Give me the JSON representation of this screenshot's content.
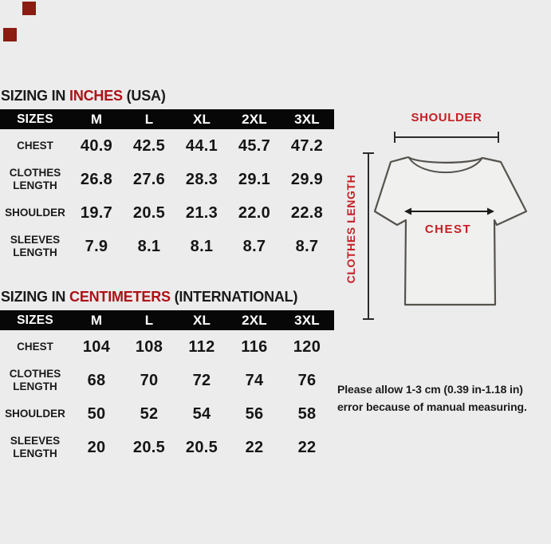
{
  "colors": {
    "background": "#ececec",
    "band": "#070707",
    "band_text": "#ffffff",
    "table_red": "#ae1116",
    "diagram_red": "#c52025",
    "text": "#1a1a1a",
    "square": "#8a1c12",
    "shirt_outline": "#56534d"
  },
  "tables": [
    {
      "title_prefix": "SIZING IN ",
      "title_unit": "INCHES",
      "title_suffix": " (USA)",
      "header": [
        "SIZES",
        "M",
        "L",
        "XL",
        "2XL",
        "3XL"
      ],
      "rows": [
        {
          "label": "CHEST",
          "values": [
            "40.9",
            "42.5",
            "44.1",
            "45.7",
            "47.2"
          ]
        },
        {
          "label": "CLOTHES LENGTH",
          "values": [
            "26.8",
            "27.6",
            "28.3",
            "29.1",
            "29.9"
          ]
        },
        {
          "label": "SHOULDER",
          "values": [
            "19.7",
            "20.5",
            "21.3",
            "22.0",
            "22.8"
          ]
        },
        {
          "label": "SLEEVES LENGTH",
          "values": [
            "7.9",
            "8.1",
            "8.1",
            "8.7",
            "8.7"
          ]
        }
      ]
    },
    {
      "title_prefix": "SIZING IN ",
      "title_unit": "CENTIMETERS",
      "title_suffix": " (INTERNATIONAL)",
      "header": [
        "SIZES",
        "M",
        "L",
        "XL",
        "2XL",
        "3XL"
      ],
      "rows": [
        {
          "label": "CHEST",
          "values": [
            "104",
            "108",
            "112",
            "116",
            "120"
          ]
        },
        {
          "label": "CLOTHES LENGTH",
          "values": [
            "68",
            "70",
            "72",
            "74",
            "76"
          ]
        },
        {
          "label": "SHOULDER",
          "values": [
            "50",
            "52",
            "54",
            "56",
            "58"
          ]
        },
        {
          "label": "SLEEVES LENGTH",
          "values": [
            "20",
            "20.5",
            "20.5",
            "22",
            "22"
          ]
        }
      ]
    }
  ],
  "diagram": {
    "shoulder_label": "SHOULDER",
    "clothes_length_label": "CLOTHES LENGTH",
    "chest_label": "CHEST"
  },
  "note": {
    "line1": "Please allow 1-3 cm (0.39 in-1.18 in)",
    "line2": "error because of manual measuring."
  }
}
